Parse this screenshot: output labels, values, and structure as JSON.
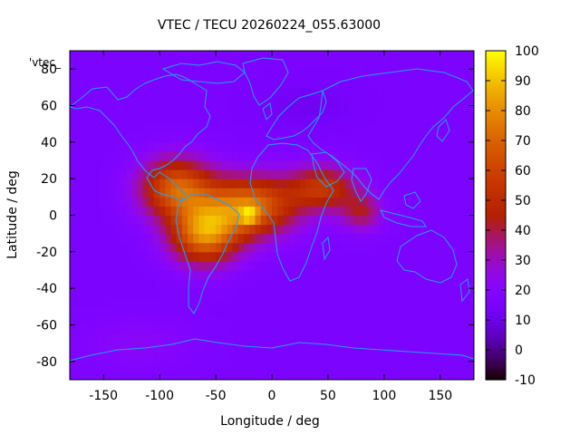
{
  "chart_data": {
    "type": "heatmap",
    "title": "VTEC / TECU 20260224_055.63000",
    "xlabel": "Longitude / deg",
    "ylabel": "Latitude / deg",
    "xlim": [
      -180,
      180
    ],
    "ylim": [
      -90,
      90
    ],
    "xticks": [
      -150,
      -100,
      -50,
      0,
      50,
      100,
      150
    ],
    "yticks": [
      -80,
      -60,
      -40,
      -20,
      0,
      20,
      40,
      60,
      80
    ],
    "colorbar": {
      "range": [
        -10,
        100
      ],
      "ticks": [
        -10,
        0,
        10,
        20,
        30,
        40,
        50,
        60,
        70,
        80,
        90,
        100
      ]
    },
    "key_label": "'vtec_",
    "cell_size_deg": 5,
    "background_vtec": 16,
    "anomaly_centers": [
      {
        "lon": -85,
        "lat": 15,
        "lat_spread": 16,
        "lon_spread": 32,
        "peak": 52
      },
      {
        "lon": -60,
        "lat": -10,
        "lat_spread": 16,
        "lon_spread": 30,
        "peak": 60
      },
      {
        "lon": -20,
        "lat": 5,
        "lat_spread": 16,
        "lon_spread": 40,
        "peak": 58
      },
      {
        "lon": 45,
        "lat": 15,
        "lat_spread": 12,
        "lon_spread": 30,
        "peak": 38
      },
      {
        "lon": 80,
        "lat": 2,
        "lat_spread": 10,
        "lon_spread": 18,
        "peak": 24
      }
    ],
    "peak_location": {
      "lon": -20,
      "lat": 0,
      "value": 98
    },
    "coastline_color": "#20a0ff",
    "palette": "gnuplot rgbformulae 7,5,15"
  }
}
